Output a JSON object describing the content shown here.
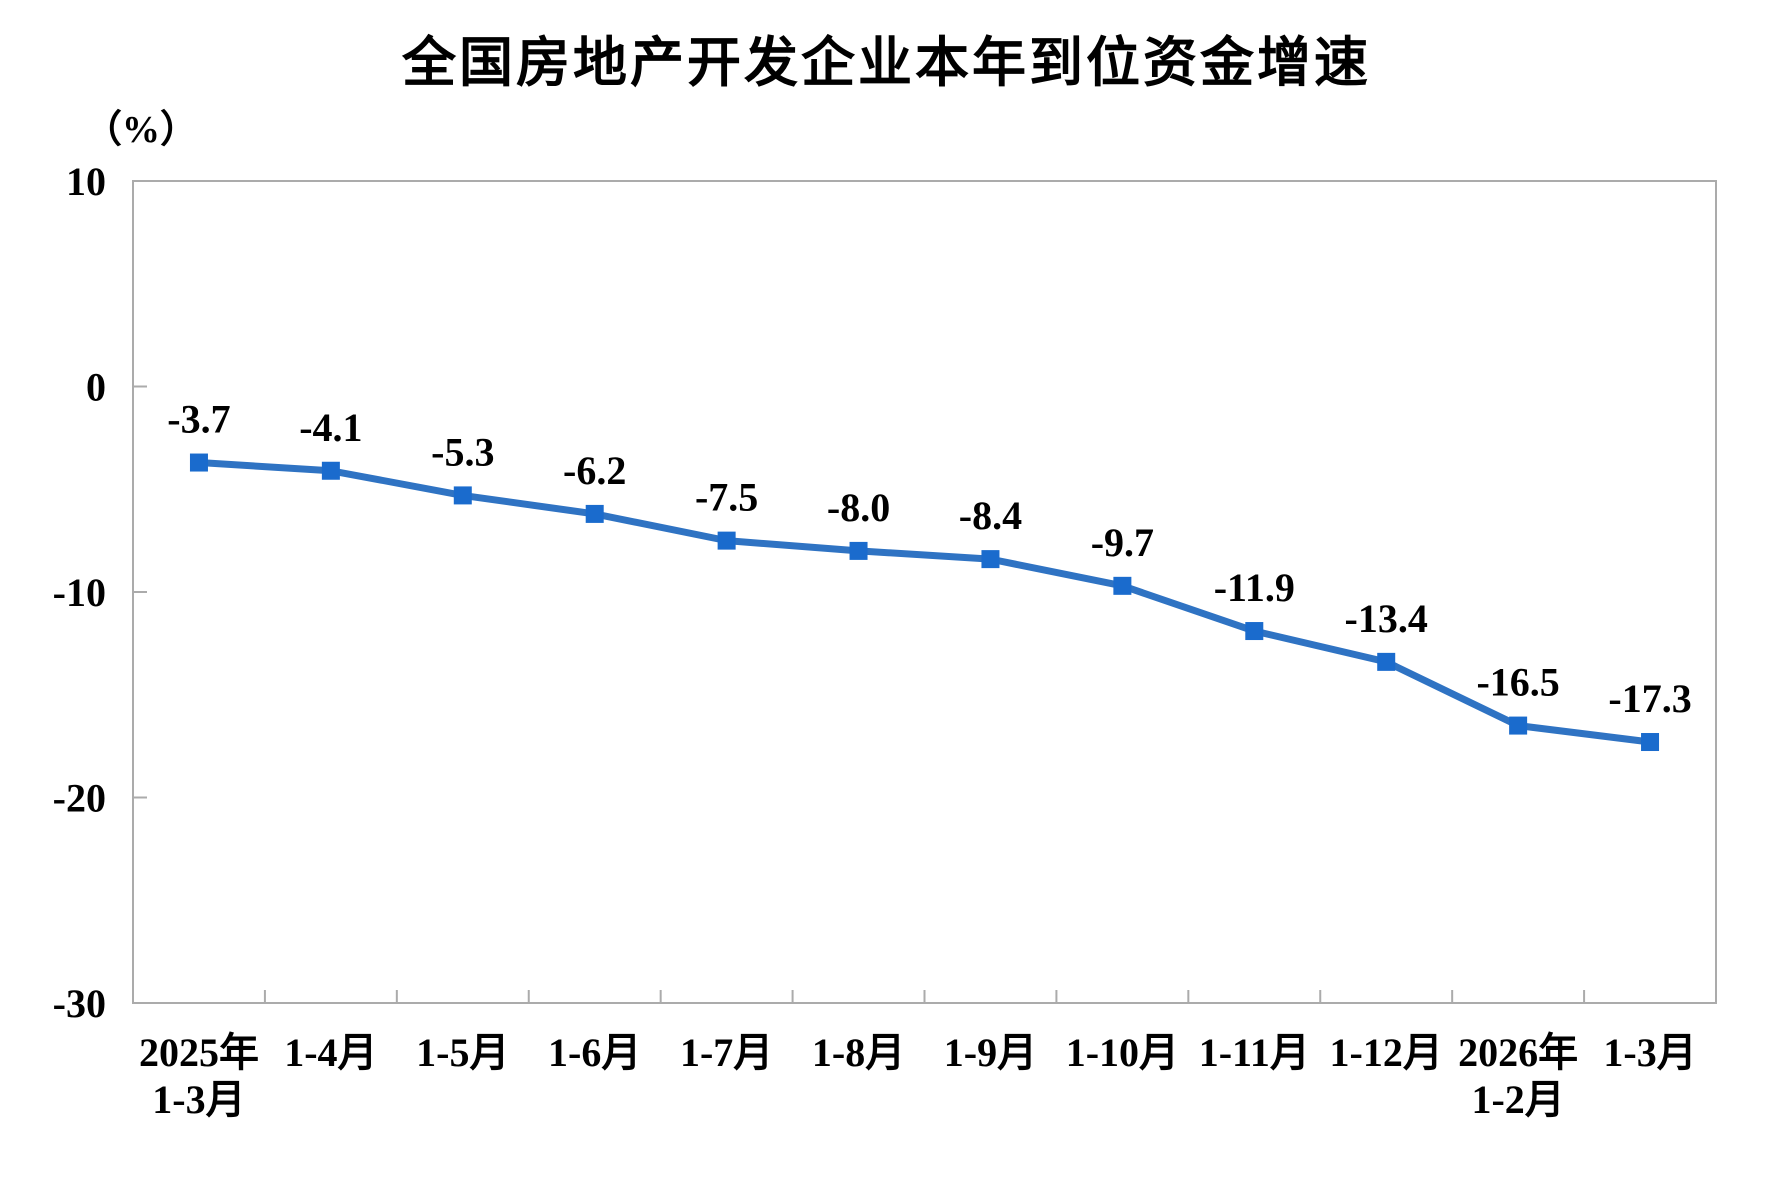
{
  "chart_data": {
    "type": "line",
    "title": "全国房地产开发企业本年到位资金增速",
    "unit_label": "（%）",
    "xlabel": "",
    "ylabel": "（%）",
    "categories": [
      [
        "2025年",
        "1-3月"
      ],
      [
        "1-4月"
      ],
      [
        "1-5月"
      ],
      [
        "1-6月"
      ],
      [
        "1-7月"
      ],
      [
        "1-8月"
      ],
      [
        "1-9月"
      ],
      [
        "1-10月"
      ],
      [
        "1-11月"
      ],
      [
        "1-12月"
      ],
      [
        "2026年",
        "1-2月"
      ],
      [
        "1-3月"
      ]
    ],
    "values": [
      -3.7,
      -4.1,
      -5.3,
      -6.2,
      -7.5,
      -8.0,
      -8.4,
      -9.7,
      -11.9,
      -13.4,
      -16.5,
      -17.3
    ],
    "value_labels": [
      "-3.7",
      "-4.1",
      "-5.3",
      "-6.2",
      "-7.5",
      "-8.0",
      "-8.4",
      "-9.7",
      "-11.9",
      "-13.4",
      "-16.5",
      "-17.3"
    ],
    "ylim": [
      -30,
      10
    ],
    "yticks": [
      10,
      0,
      -10,
      -20,
      -30
    ],
    "grid": false,
    "legend": "none",
    "marker_shape": "square",
    "colors": {
      "line": "#2F73C3",
      "marker": "#1A6BCD",
      "axis": "#ABABAB",
      "text": "#000000"
    }
  }
}
